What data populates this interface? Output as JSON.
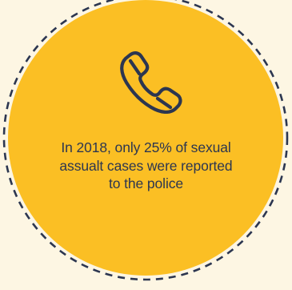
{
  "caption": {
    "lines": [
      "In 2018, only 25% of sexual",
      "assualt cases were reported",
      "to the police"
    ]
  },
  "icon": "phone-icon",
  "colors": {
    "background": "#fdf6e3",
    "circle_fill": "#fbbf24",
    "outline": "#2c3650",
    "dashed_ring": "#2c3650"
  }
}
